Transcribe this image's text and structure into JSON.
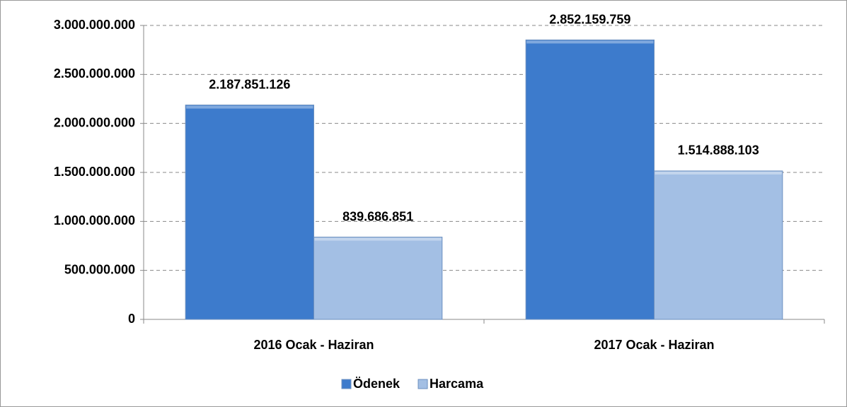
{
  "chart_data": {
    "type": "bar",
    "categories": [
      "2016 Ocak - Haziran",
      "2017 Ocak - Haziran"
    ],
    "series": [
      {
        "name": "Ödenek",
        "color": "#3d7bcc",
        "values": [
          2187851126,
          2852159759
        ],
        "value_labels": [
          "2.187.851.126",
          "2.852.159.759"
        ]
      },
      {
        "name": "Harcama",
        "color": "#a3bfe4",
        "values": [
          839686851,
          1514888103
        ],
        "value_labels": [
          "839.686.851",
          "1.514.888.103"
        ]
      }
    ],
    "ylim": [
      0,
      3000000000
    ],
    "yticks": [
      0,
      {
        "value": 500000000,
        "label": "500.000.000"
      },
      {
        "value": 1000000000,
        "label": "1.000.000.000"
      },
      {
        "value": 1500000000,
        "label": "1.500.000.000"
      },
      {
        "value": 2000000000,
        "label": "2.000.000.000"
      },
      {
        "value": 2500000000,
        "label": "2.500.000.000"
      },
      {
        "value": 3000000000,
        "label": "3.000.000.000"
      }
    ],
    "grid": true,
    "legend": "bottom"
  }
}
